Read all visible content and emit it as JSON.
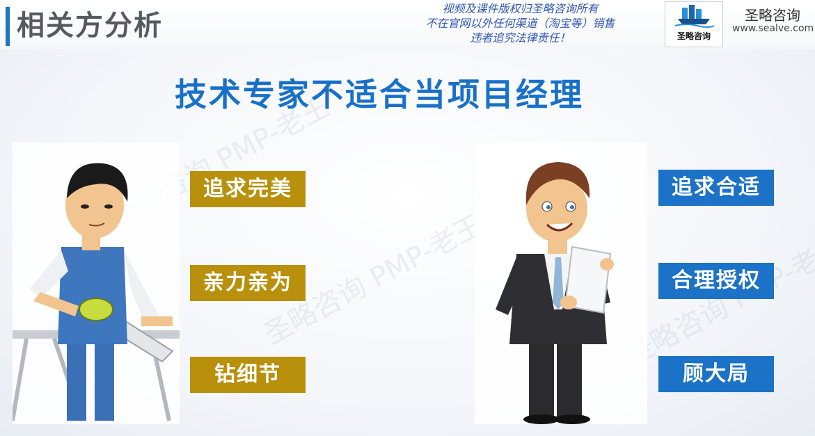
{
  "header": {
    "section_title": "相关方分析",
    "copyright_lines": [
      "视频及课件版权归圣略咨询所有",
      "不在官网以外任何渠道（淘宝等）销售",
      "违者追究法律责任！"
    ],
    "logo_text": "圣略咨询",
    "brand_name": "圣略咨询",
    "brand_url": "www.sealve.com"
  },
  "headline": "技术专家不适合当项目经理",
  "watermark": "圣略咨询 PMP-老王",
  "left_person": {
    "role": "technical-expert",
    "tags": [
      "追求完美",
      "亲力亲为",
      "钻细节"
    ]
  },
  "right_person": {
    "role": "project-manager",
    "tags": [
      "追求合适",
      "合理授权",
      "顾大局"
    ]
  },
  "colors": {
    "accent_blue": "#1b72c6",
    "headline_blue": "#1870c9",
    "gold": "#b8900b",
    "title_gray": "#555a60"
  }
}
